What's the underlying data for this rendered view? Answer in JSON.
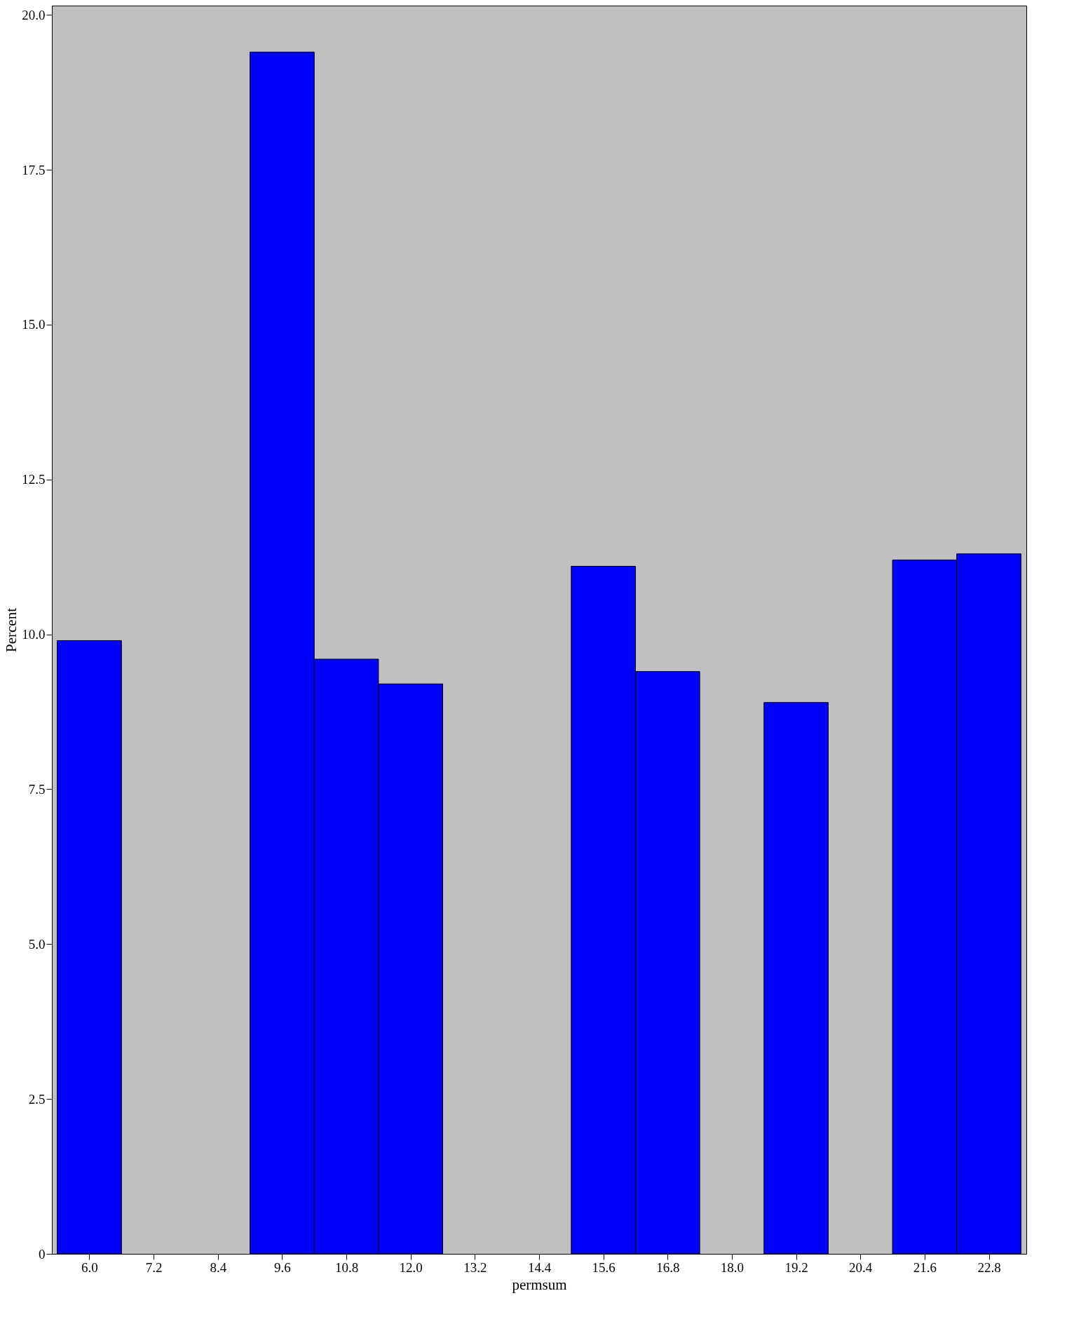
{
  "chart_data": {
    "type": "histogram",
    "xlabel": "permsum",
    "ylabel": "Percent",
    "bins": [
      5.4,
      6.6,
      7.8,
      9.0,
      10.2,
      11.4,
      12.6,
      13.8,
      15.0,
      16.2,
      17.4,
      18.6,
      19.8,
      21.0,
      22.2,
      23.4
    ],
    "values": [
      9.9,
      0,
      0,
      19.4,
      9.6,
      9.2,
      0,
      0,
      11.1,
      9.4,
      0,
      8.9,
      0,
      11.2,
      11.3
    ],
    "color": "#0000ff",
    "xlim": [
      5.3,
      23.5
    ],
    "ylim": [
      0,
      20.15
    ],
    "xticks": [
      {
        "value": 6.0,
        "label": "6.0"
      },
      {
        "value": 7.2,
        "label": "7.2"
      },
      {
        "value": 8.4,
        "label": "8.4"
      },
      {
        "value": 9.6,
        "label": "9.6"
      },
      {
        "value": 10.8,
        "label": "10.8"
      },
      {
        "value": 12.0,
        "label": "12.0"
      },
      {
        "value": 13.2,
        "label": "13.2"
      },
      {
        "value": 14.4,
        "label": "14.4"
      },
      {
        "value": 15.6,
        "label": "15.6"
      },
      {
        "value": 16.8,
        "label": "16.8"
      },
      {
        "value": 18.0,
        "label": "18.0"
      },
      {
        "value": 19.2,
        "label": "19.2"
      },
      {
        "value": 20.4,
        "label": "20.4"
      },
      {
        "value": 21.6,
        "label": "21.6"
      },
      {
        "value": 22.8,
        "label": "22.8"
      }
    ],
    "yticks": [
      0,
      2.5,
      {
        "value": 5,
        "label": "5.0"
      },
      7.5,
      {
        "value": 10,
        "label": "10.0"
      },
      12.5,
      {
        "value": 15,
        "label": "15.0"
      },
      17.5,
      {
        "value": 20,
        "label": "20.0"
      }
    ],
    "grid": false
  }
}
